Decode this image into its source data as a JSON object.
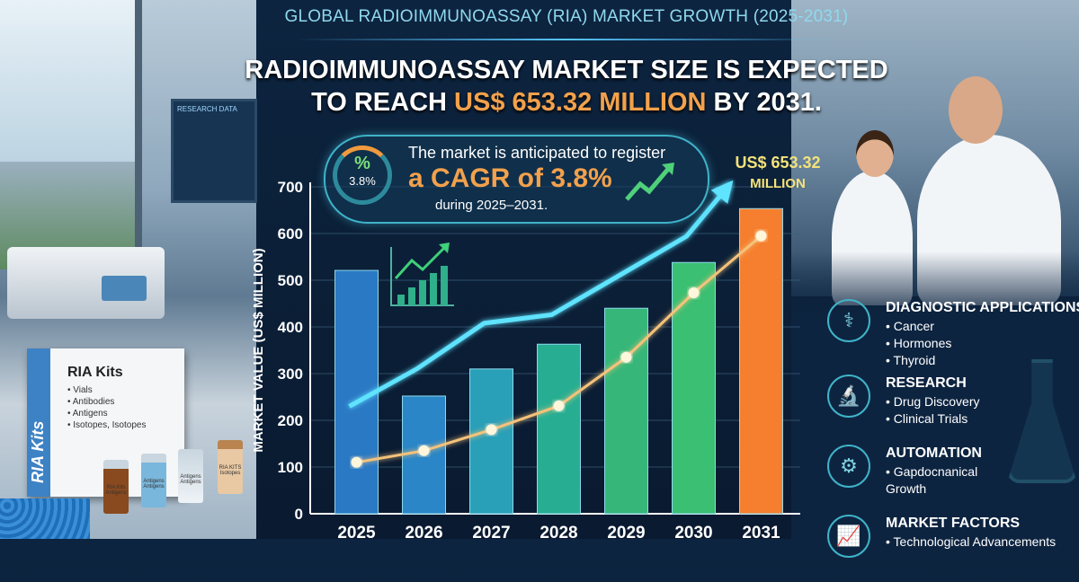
{
  "header": {
    "subtitle": "GLOBAL RADIOIMMUNOASSAY (RIA) MARKET GROWTH (2025-2031)",
    "headline_line1": "RADIOIMMUNOASSAY MARKET SIZE IS EXPECTED",
    "headline_pre": "TO REACH ",
    "headline_accent": "US$ 653.32 MILLION",
    "headline_post": " BY 2031."
  },
  "cagr": {
    "ring_symbol": "%",
    "ring_value": "3.8%",
    "line1": "The market is anticipated to register",
    "line2": "a CAGR of 3.8%",
    "line3": "during 2025–2031."
  },
  "annotation": {
    "value": "US$ 653.32",
    "unit": "MILLION"
  },
  "left_photo": {
    "monitor_text": "RESEARCH DATA",
    "kit_side": "RIA Kits",
    "kit_title": "RIA Kits",
    "kit_items": [
      "Vials",
      "Antibodies",
      "Antigens",
      "Isotopes, Isotopes"
    ],
    "vial_labels": [
      "RIA Kits Antigens",
      "Antigens Antigens",
      "Antigens Antigens",
      "RIA KITS Isotopes"
    ]
  },
  "features": [
    {
      "icon": "stethoscope-icon",
      "title": "DIAGNOSTIC APPLICATIONS",
      "items": [
        "Cancer",
        "Hormones",
        "Thyroid"
      ]
    },
    {
      "icon": "microscope-icon",
      "title": "RESEARCH",
      "items": [
        "Drug Discovery",
        "Clinical Trials"
      ]
    },
    {
      "icon": "gear-icon",
      "title": "AUTOMATION",
      "items": [
        "Gapdocnanical Growth"
      ]
    },
    {
      "icon": "growth-chart-icon",
      "title": "MARKET FACTORS",
      "items": [
        "Technological Advancements"
      ]
    }
  ],
  "chart_data": {
    "type": "bar",
    "categories": [
      "2025",
      "2026",
      "2027",
      "2028",
      "2029",
      "2030",
      "2031"
    ],
    "ylabel": "MARKET VALUE (US$ MILLION)",
    "ylim": [
      0,
      700
    ],
    "yticks": [
      0,
      100,
      200,
      300,
      400,
      500,
      600,
      700
    ],
    "grid": true,
    "series": [
      {
        "type": "bar",
        "values": [
          521,
          252,
          310,
          363,
          440,
          538,
          653.32
        ]
      },
      {
        "type": "line",
        "color": "#f5c27a",
        "values": [
          110,
          135,
          180,
          231,
          335,
          473,
          595
        ]
      },
      {
        "type": "line",
        "color": "#5fe3ff",
        "arrow": true,
        "values": [
          230,
          310,
          408,
          426,
          510,
          594,
          705
        ]
      }
    ],
    "bar_colors": [
      "#2a79c4",
      "#2a86c6",
      "#2a9fb8",
      "#27ae92",
      "#36b779",
      "#3bbf72",
      "#f57f2e"
    ]
  }
}
